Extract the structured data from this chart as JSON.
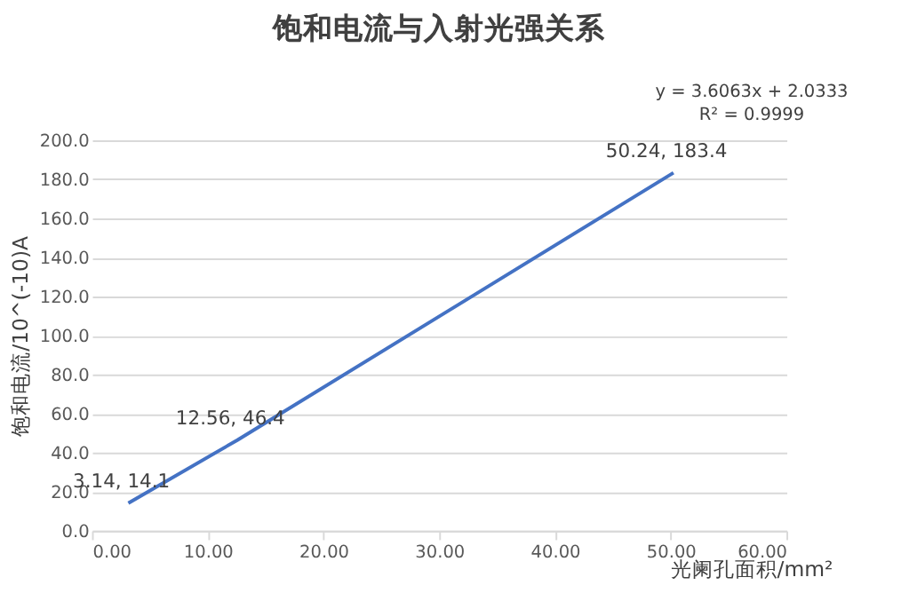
{
  "chart_data": {
    "type": "line",
    "title": "饱和电流与入射光强关系",
    "xlabel": "光阑孔面积/mm²",
    "ylabel": "饱和电流/10^(-10)A",
    "series": [
      {
        "color": "#4472c4",
        "x": [
          3.14,
          12.56,
          50.24
        ],
        "values": [
          14.1,
          46.4,
          183.4
        ]
      }
    ],
    "xlim": [
      0,
      60
    ],
    "xticks": [
      {
        "value": 0,
        "label": "0.00"
      },
      {
        "value": 10,
        "label": "10.00"
      },
      {
        "value": 20,
        "label": "20.00"
      },
      {
        "value": 30,
        "label": "30.00"
      },
      {
        "value": 40,
        "label": "40.00"
      },
      {
        "value": 50,
        "label": "50.00"
      },
      {
        "value": 60,
        "label": "60.00"
      }
    ],
    "ylim": [
      0,
      200
    ],
    "yticks": [
      {
        "value": 0,
        "label": "0.0"
      },
      {
        "value": 20,
        "label": "20.0"
      },
      {
        "value": 40,
        "label": "40.0"
      },
      {
        "value": 60,
        "label": "60.0"
      },
      {
        "value": 80,
        "label": "80.0"
      },
      {
        "value": 100,
        "label": "100.0"
      },
      {
        "value": 120,
        "label": "120.0"
      },
      {
        "value": 140,
        "label": "140.0"
      },
      {
        "value": 160,
        "label": "160.0"
      },
      {
        "value": 180,
        "label": "180.0"
      },
      {
        "value": 200,
        "label": "200.0"
      }
    ],
    "grid": "y",
    "marker": "none",
    "line_style": "solid",
    "annotations": [
      {
        "text": "3.14, 14.1",
        "x": 3.14,
        "y": 14.1
      },
      {
        "text": "12.56, 46.4",
        "x": 12.56,
        "y": 46.4
      },
      {
        "text": "50.24, 183.4",
        "x": 50.24,
        "y": 183.4
      },
      "y = 3.6063x + 2.0333",
      "R² = 0.9999"
    ]
  }
}
